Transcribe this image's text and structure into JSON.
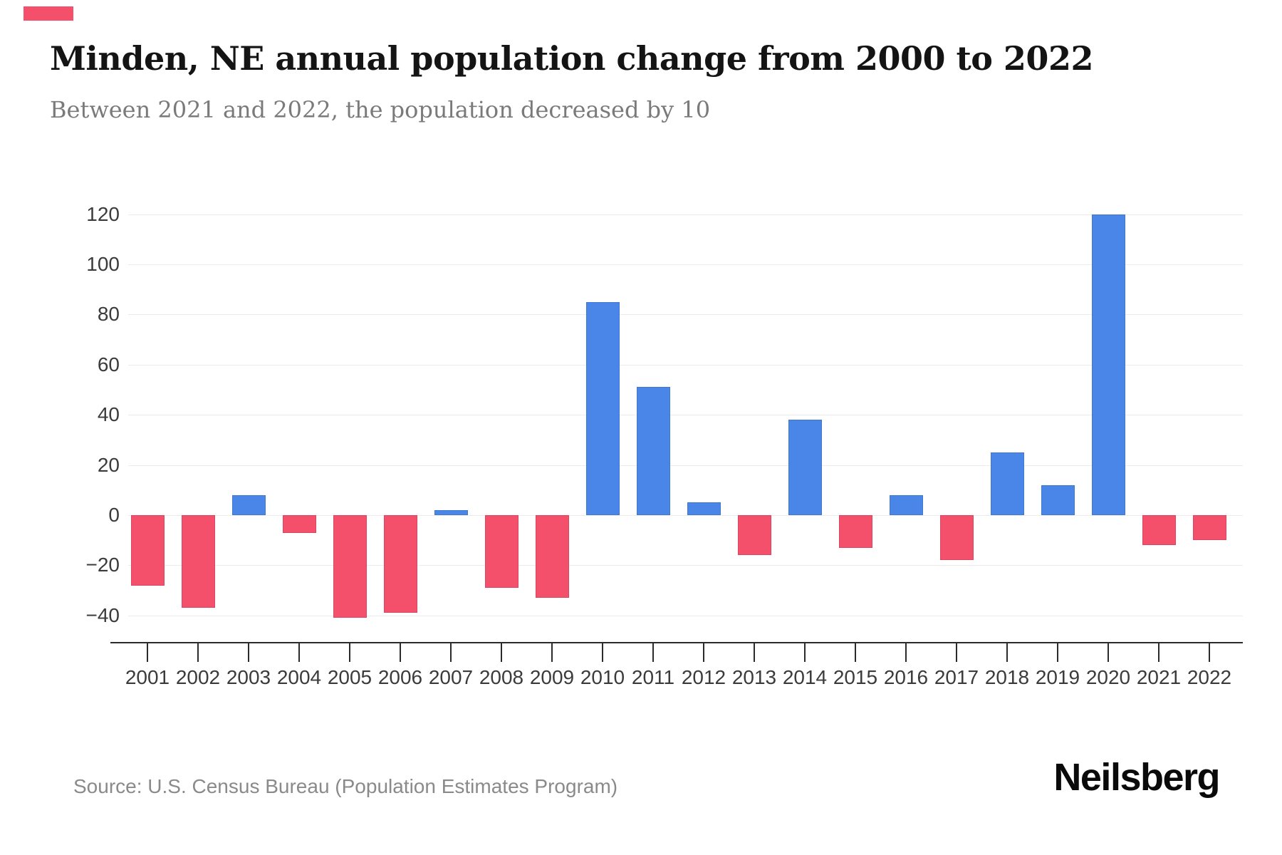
{
  "header": {
    "title": "Minden, NE annual population change from 2000 to 2022",
    "subtitle": "Between 2021 and 2022, the population decreased by 10"
  },
  "footer": {
    "source": "Source: U.S. Census Bureau (Population Estimates Program)",
    "brand": "Neilsberg"
  },
  "accent_color": "#f4506c",
  "chart_data": {
    "type": "bar",
    "title": "Minden, NE annual population change from 2000 to 2022",
    "subtitle": "Between 2021 and 2022, the population decreased by 10",
    "xlabel": "",
    "ylabel": "",
    "categories": [
      "2001",
      "2002",
      "2003",
      "2004",
      "2005",
      "2006",
      "2007",
      "2008",
      "2009",
      "2010",
      "2011",
      "2012",
      "2013",
      "2014",
      "2015",
      "2016",
      "2017",
      "2018",
      "2019",
      "2020",
      "2021",
      "2022"
    ],
    "values": [
      -28,
      -37,
      8,
      -7,
      -41,
      -39,
      2,
      -29,
      -33,
      85,
      51,
      5,
      -16,
      38,
      -13,
      8,
      -18,
      25,
      12,
      120,
      -12,
      -10
    ],
    "yticks": [
      120,
      100,
      80,
      60,
      40,
      20,
      0,
      -20,
      -40
    ],
    "ylim": [
      -40,
      120
    ],
    "grid": "horizontal",
    "legend": "none",
    "colors": {
      "positive": "#4a86e8",
      "negative": "#f4506c"
    }
  }
}
